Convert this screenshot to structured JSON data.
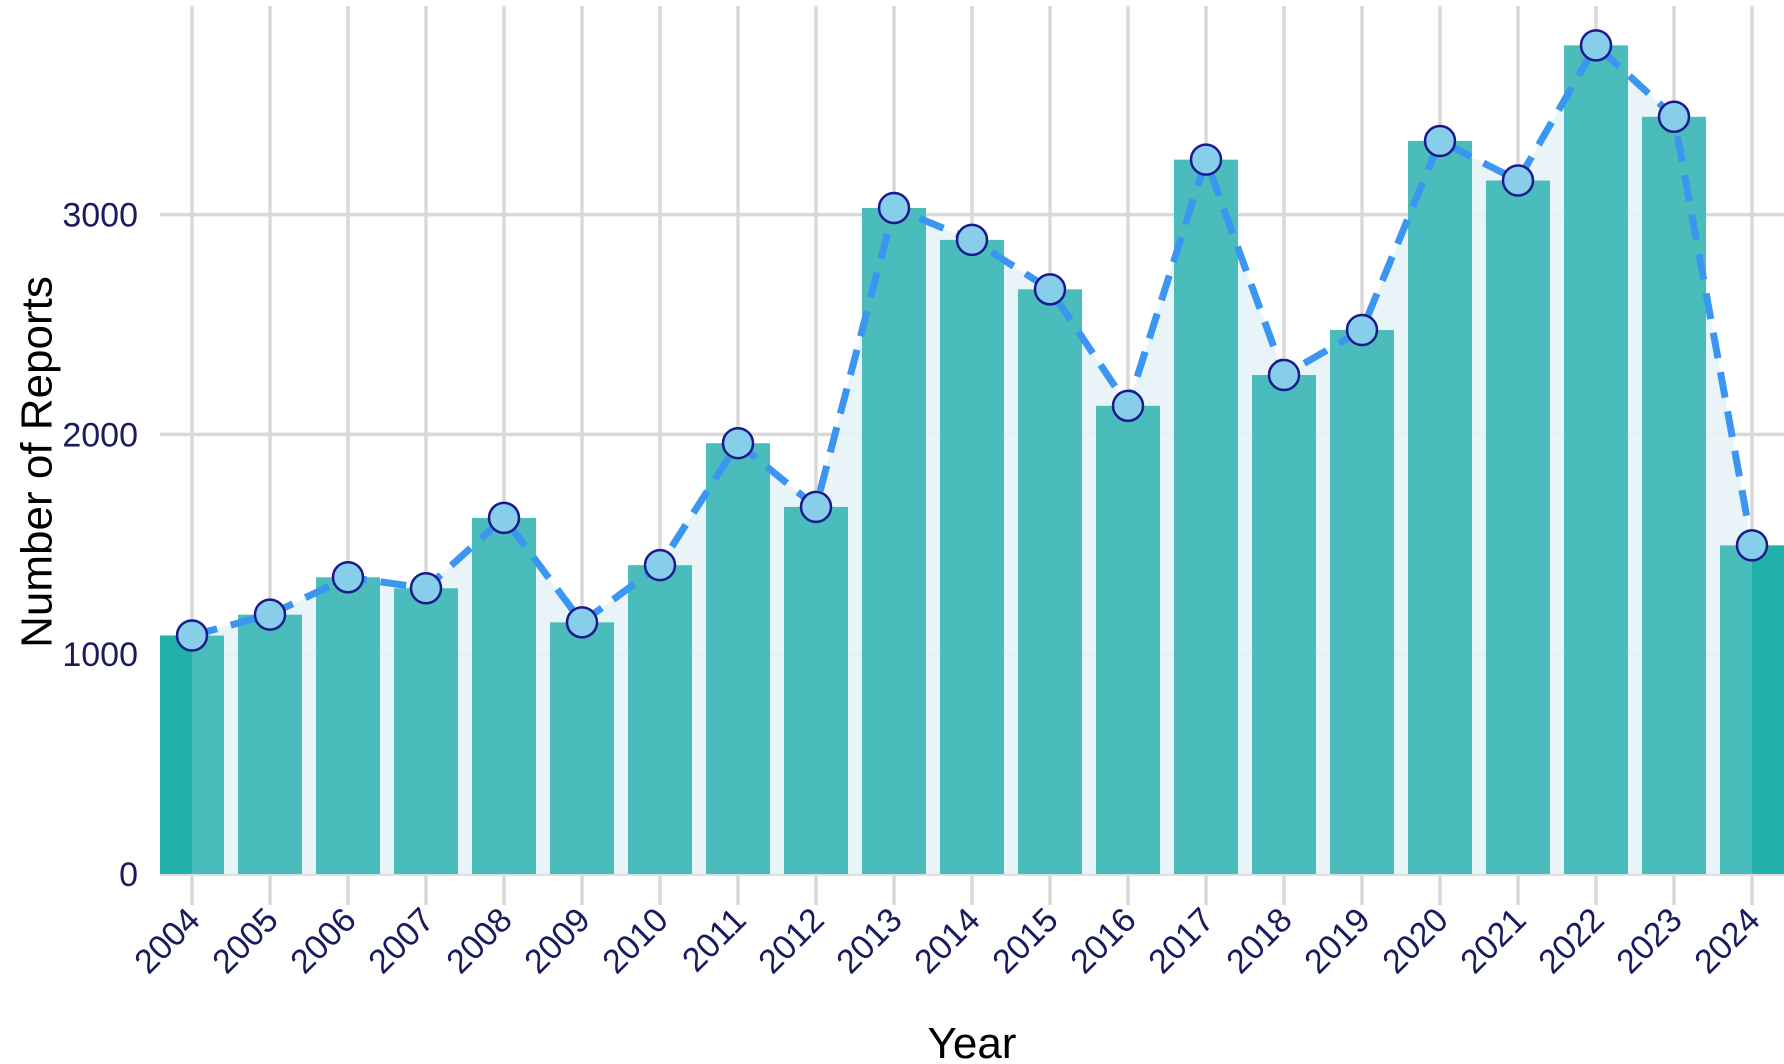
{
  "chart_data": {
    "type": "bar",
    "title": "",
    "xlabel": "Year",
    "ylabel": "Number of Reports",
    "categories": [
      "2004",
      "2005",
      "2006",
      "2007",
      "2008",
      "2009",
      "2010",
      "2011",
      "2012",
      "2013",
      "2014",
      "2015",
      "2016",
      "2017",
      "2018",
      "2019",
      "2020",
      "2021",
      "2022",
      "2023",
      "2024"
    ],
    "values": [
      1085,
      1180,
      1350,
      1300,
      1620,
      1145,
      1405,
      1960,
      1670,
      3030,
      2885,
      2660,
      2130,
      3250,
      2270,
      2475,
      3335,
      3155,
      3770,
      3445,
      1495
    ],
    "overlay": {
      "type": "line",
      "style": "dashed",
      "markers": true,
      "area_fill": true
    },
    "yticks": [
      "0",
      "1000",
      "2000",
      "3000"
    ],
    "ylim": [
      0,
      3950
    ],
    "grid": true,
    "legend": "none",
    "colors": {
      "bar": "#4bbcbc",
      "bar_edge": "#20b2aa",
      "area": "#e6f3f6",
      "line": "#3a96f0",
      "marker_fill": "#87ceeb",
      "marker_stroke": "#1a1a8c",
      "tick_text": "#1a1a5e",
      "grid": "#d9d9d9"
    }
  }
}
